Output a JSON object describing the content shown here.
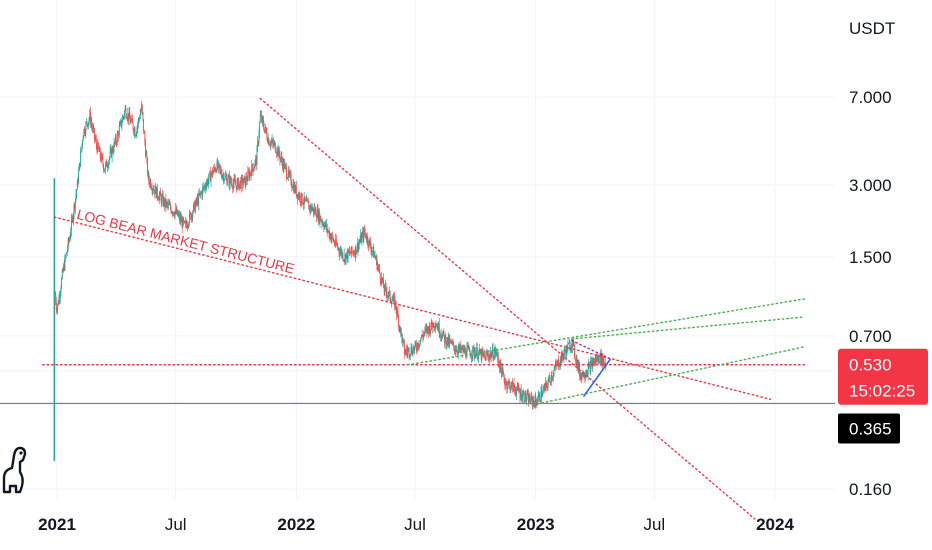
{
  "chart_data": {
    "type": "candlestick",
    "unit": "USDT",
    "scale": "log",
    "y_ticks": [
      "7.000",
      "3.000",
      "1.500",
      "0.700",
      "0.160"
    ],
    "y_tick_values": [
      7.0,
      3.0,
      1.5,
      0.7,
      0.16
    ],
    "x_ticks": [
      {
        "label": "2021",
        "date": "2021-01-01",
        "bold": true
      },
      {
        "label": "Jul",
        "date": "2021-07-01",
        "bold": false
      },
      {
        "label": "2022",
        "date": "2022-01-01",
        "bold": true
      },
      {
        "label": "Jul",
        "date": "2022-07-01",
        "bold": false
      },
      {
        "label": "2023",
        "date": "2023-01-01",
        "bold": true
      },
      {
        "label": "Jul",
        "date": "2023-07-01",
        "bold": false
      },
      {
        "label": "2024",
        "date": "2024-01-01",
        "bold": true
      }
    ],
    "last_price": "0.530",
    "countdown": "15:02:25",
    "marked_level": "0.365",
    "price_path": [
      [
        "2020-12-28",
        1.1
      ],
      [
        "2021-01-01",
        0.9
      ],
      [
        "2021-01-10",
        1.3
      ],
      [
        "2021-01-20",
        1.8
      ],
      [
        "2021-02-01",
        3.0
      ],
      [
        "2021-02-10",
        5.0
      ],
      [
        "2021-02-20",
        5.8
      ],
      [
        "2021-03-01",
        4.5
      ],
      [
        "2021-03-15",
        3.5
      ],
      [
        "2021-04-01",
        4.6
      ],
      [
        "2021-04-15",
        6.2
      ],
      [
        "2021-05-01",
        5.0
      ],
      [
        "2021-05-10",
        6.3
      ],
      [
        "2021-05-20",
        3.2
      ],
      [
        "2021-06-01",
        2.8
      ],
      [
        "2021-06-15",
        2.5
      ],
      [
        "2021-07-01",
        2.3
      ],
      [
        "2021-07-15",
        2.0
      ],
      [
        "2021-08-01",
        2.5
      ],
      [
        "2021-08-15",
        3.0
      ],
      [
        "2021-09-01",
        3.6
      ],
      [
        "2021-09-15",
        3.2
      ],
      [
        "2021-10-01",
        3.0
      ],
      [
        "2021-10-15",
        3.1
      ],
      [
        "2021-11-01",
        3.8
      ],
      [
        "2021-11-07",
        5.8
      ],
      [
        "2021-11-20",
        4.6
      ],
      [
        "2021-12-01",
        4.3
      ],
      [
        "2021-12-15",
        3.5
      ],
      [
        "2022-01-01",
        2.8
      ],
      [
        "2022-01-15",
        2.5
      ],
      [
        "2022-02-01",
        2.3
      ],
      [
        "2022-02-15",
        2.0
      ],
      [
        "2022-03-01",
        1.7
      ],
      [
        "2022-03-15",
        1.5
      ],
      [
        "2022-04-01",
        1.6
      ],
      [
        "2022-04-15",
        1.9
      ],
      [
        "2022-05-01",
        1.5
      ],
      [
        "2022-05-15",
        1.1
      ],
      [
        "2022-06-01",
        0.95
      ],
      [
        "2022-06-15",
        0.6
      ],
      [
        "2022-07-01",
        0.62
      ],
      [
        "2022-07-15",
        0.72
      ],
      [
        "2022-08-01",
        0.8
      ],
      [
        "2022-08-15",
        0.68
      ],
      [
        "2022-09-01",
        0.62
      ],
      [
        "2022-09-15",
        0.6
      ],
      [
        "2022-10-01",
        0.6
      ],
      [
        "2022-10-15",
        0.57
      ],
      [
        "2022-11-01",
        0.6
      ],
      [
        "2022-11-15",
        0.45
      ],
      [
        "2022-12-01",
        0.42
      ],
      [
        "2022-12-20",
        0.38
      ],
      [
        "2023-01-01",
        0.37
      ],
      [
        "2023-01-15",
        0.42
      ],
      [
        "2023-02-01",
        0.52
      ],
      [
        "2023-02-15",
        0.6
      ],
      [
        "2023-02-25",
        0.66
      ],
      [
        "2023-03-10",
        0.48
      ],
      [
        "2023-03-20",
        0.5
      ],
      [
        "2023-04-01",
        0.55
      ],
      [
        "2023-04-10",
        0.57
      ],
      [
        "2023-04-18",
        0.53
      ]
    ],
    "lines": [
      {
        "name": "log-bear-structure",
        "style": "dotted",
        "color": "#e53948",
        "points": [
          [
            "2020-12-28",
            2.2
          ],
          [
            "2023-12-25",
            0.38
          ]
        ]
      },
      {
        "name": "macro-downtrend",
        "style": "dotted",
        "color": "#e53948",
        "points": [
          [
            "2021-11-07",
            6.9
          ],
          [
            "2023-12-01",
            0.12
          ]
        ]
      },
      {
        "name": "support-0.53",
        "style": "dotted",
        "color": "#e53948",
        "points": [
          [
            "2020-12-10",
            0.53
          ],
          [
            "2024-02-15",
            0.53
          ]
        ]
      },
      {
        "name": "channel-top",
        "style": "dotted",
        "color": "#4caf50",
        "points": [
          [
            "2022-06-20",
            0.53
          ],
          [
            "2024-02-15",
            1.0
          ]
        ]
      },
      {
        "name": "channel-mid",
        "style": "dotted",
        "color": "#4caf50",
        "points": [
          [
            "2023-02-25",
            0.68
          ],
          [
            "2024-02-15",
            0.84
          ]
        ]
      },
      {
        "name": "channel-bottom",
        "style": "dotted",
        "color": "#4caf50",
        "points": [
          [
            "2022-12-28",
            0.36
          ],
          [
            "2024-02-15",
            0.63
          ]
        ]
      },
      {
        "name": "wedge-support",
        "style": "solid",
        "color": "#2962ff",
        "points": [
          [
            "2023-03-15",
            0.39
          ],
          [
            "2023-04-25",
            0.56
          ]
        ]
      },
      {
        "name": "wedge-resistance",
        "style": "dotted",
        "color": "#9c27b0",
        "points": [
          [
            "2023-02-25",
            0.67
          ],
          [
            "2023-04-25",
            0.56
          ]
        ]
      }
    ],
    "annotations": [
      {
        "text": "LOG BEAR MARKET STRUCTURE",
        "color": "#e53948"
      }
    ],
    "colors": {
      "up": "#26a69a",
      "down": "#ef5350",
      "trend": "#e53948",
      "channel": "#4caf50",
      "price_badge": "#f23645",
      "level_badge": "#000000",
      "axis_text": "#131722"
    }
  }
}
